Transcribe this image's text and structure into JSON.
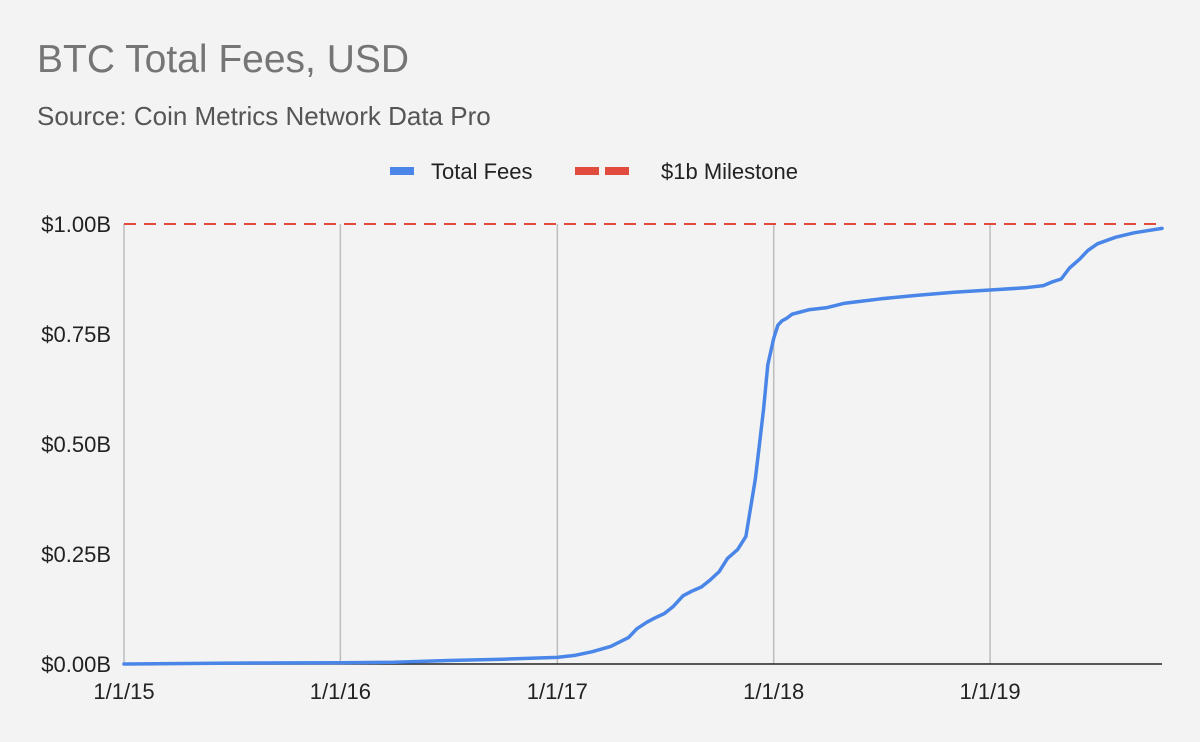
{
  "title": "BTC Total Fees, USD",
  "subtitle": "Source: Coin Metrics Network Data Pro",
  "colors": {
    "background": "#f3f3f3",
    "total_fees": "#4a86e8",
    "milestone": "#e04b3d",
    "grid": "#bdbdbd",
    "axis": "#222222",
    "title": "#757575",
    "subtitle": "#555555"
  },
  "chart_data": {
    "type": "line",
    "title": "BTC Total Fees, USD",
    "subtitle": "Source: Coin Metrics Network Data Pro",
    "legend_position": "top-center",
    "grid": true,
    "xlim": [
      "2015-01-01",
      "2019-10-18"
    ],
    "ylim": [
      0,
      1.0
    ],
    "x_ticks": [
      "1/1/15",
      "1/1/16",
      "1/1/17",
      "1/1/18",
      "1/1/19"
    ],
    "y_ticks": [
      "$0.00B",
      "$0.25B",
      "$0.50B",
      "$0.75B",
      "$1.00B"
    ],
    "y_unit": "USD billions",
    "series": [
      {
        "name": "Total Fees",
        "style": "solid",
        "x": [
          "2015-01-01",
          "2015-07-01",
          "2016-01-01",
          "2016-04-01",
          "2016-07-01",
          "2016-10-01",
          "2017-01-01",
          "2017-02-01",
          "2017-03-01",
          "2017-04-01",
          "2017-05-01",
          "2017-05-15",
          "2017-06-01",
          "2017-06-15",
          "2017-07-01",
          "2017-07-15",
          "2017-08-01",
          "2017-08-15",
          "2017-09-01",
          "2017-09-15",
          "2017-10-01",
          "2017-10-15",
          "2017-11-01",
          "2017-11-15",
          "2017-12-01",
          "2017-12-08",
          "2017-12-15",
          "2017-12-22",
          "2018-01-01",
          "2018-01-08",
          "2018-01-15",
          "2018-01-22",
          "2018-02-01",
          "2018-02-15",
          "2018-03-01",
          "2018-04-01",
          "2018-05-01",
          "2018-06-01",
          "2018-07-01",
          "2018-09-01",
          "2018-11-01",
          "2019-01-01",
          "2019-03-01",
          "2019-04-01",
          "2019-04-15",
          "2019-05-01",
          "2019-05-15",
          "2019-06-01",
          "2019-06-15",
          "2019-07-01",
          "2019-08-01",
          "2019-09-01",
          "2019-10-18"
        ],
        "values": [
          0.0,
          0.002,
          0.003,
          0.004,
          0.008,
          0.011,
          0.015,
          0.02,
          0.028,
          0.04,
          0.06,
          0.08,
          0.095,
          0.105,
          0.115,
          0.13,
          0.155,
          0.165,
          0.175,
          0.19,
          0.21,
          0.24,
          0.26,
          0.29,
          0.42,
          0.5,
          0.58,
          0.68,
          0.74,
          0.77,
          0.78,
          0.785,
          0.795,
          0.8,
          0.805,
          0.81,
          0.82,
          0.825,
          0.83,
          0.838,
          0.845,
          0.85,
          0.855,
          0.86,
          0.868,
          0.875,
          0.9,
          0.92,
          0.94,
          0.955,
          0.97,
          0.98,
          0.99
        ]
      },
      {
        "name": "$1b Milestone",
        "style": "dashed",
        "x": [
          "2015-01-01",
          "2019-10-18"
        ],
        "values": [
          1.0,
          1.0
        ]
      }
    ]
  }
}
